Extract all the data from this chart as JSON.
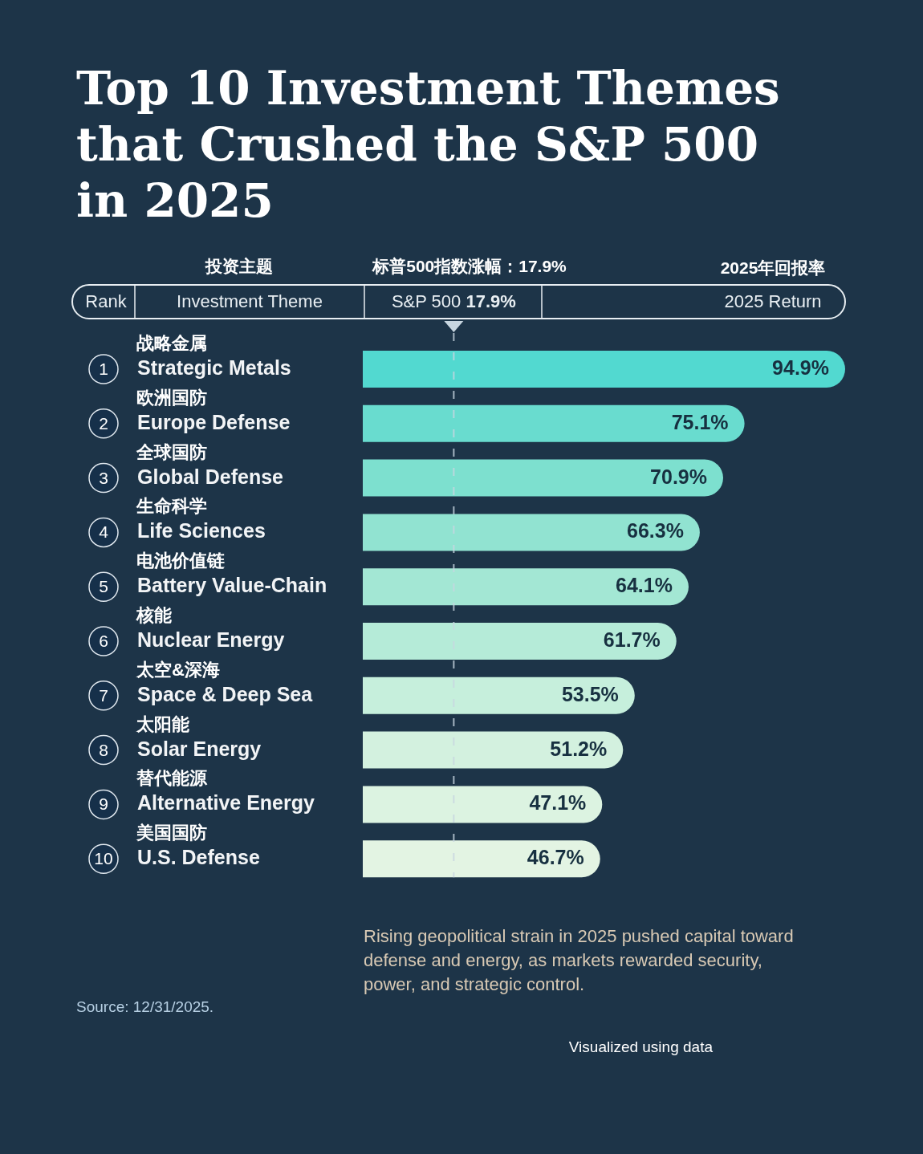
{
  "chart_data": {
    "type": "bar",
    "orientation": "horizontal",
    "title": "Top 10 Investment Themes that Crushed the S&P 500 in 2025",
    "ylabel": "Investment Theme",
    "xlabel": "2025 Return",
    "categories": [
      "Strategic Metals",
      "Europe Defense",
      "Global Defense",
      "Life Sciences",
      "Battery Value-Chain",
      "Nuclear Energy",
      "Space & Deep Sea",
      "Solar Energy",
      "Alternative Energy",
      "U.S. Defense"
    ],
    "values": [
      94.9,
      75.1,
      70.9,
      66.3,
      64.1,
      61.7,
      53.5,
      51.2,
      47.1,
      46.7
    ],
    "value_labels": [
      "94.9%",
      "75.1%",
      "70.9%",
      "66.3%",
      "64.1%",
      "61.7%",
      "53.5%",
      "51.2%",
      "47.1%",
      "46.7%"
    ],
    "colors": [
      "#52d9d0",
      "#69dccf",
      "#7de0cf",
      "#91e3d1",
      "#a3e7d4",
      "#b5ebd8",
      "#c6efdc",
      "#d3f1df",
      "#dcf3e1",
      "#e3f4e3"
    ],
    "ref_lines": [
      {
        "axis": "x",
        "value": 17.9,
        "label": "S&P 500 **17.9%**",
        "color": "#c8d6e0",
        "line_style": "dashed"
      }
    ],
    "annotations": [
      "Rank",
      "投资主题",
      "标普500指数涨幅：17.9%",
      "2025年回报率",
      "Rising geopolitical strain in 2025 pushed capital toward defense and energy, as markets rewarded security, power, and strategic control.",
      "Source: 12/31/2025.",
      "Visualized using data",
      "1",
      "2",
      "3",
      "4",
      "5",
      "6",
      "7",
      "8",
      "9",
      "10",
      "战略金属",
      "欧洲国防",
      "全球国防",
      "生命科学",
      "电池价值链",
      "核能",
      "太空&深海",
      "太阳能",
      "替代能源",
      "美国国防"
    ]
  }
}
